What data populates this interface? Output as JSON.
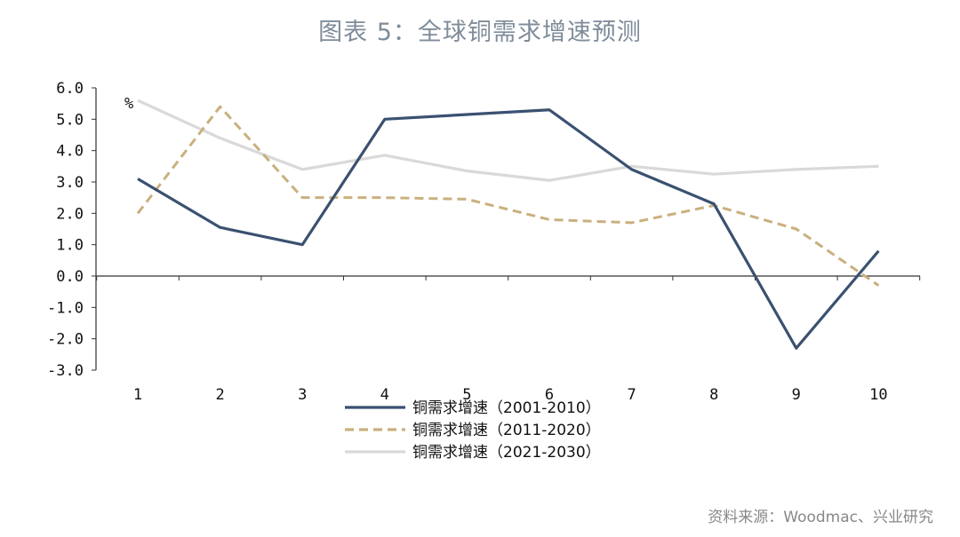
{
  "title": "图表 5：全球铜需求增速预测",
  "source": "资料来源：Woodmac、兴业研究",
  "chart_data": {
    "type": "line",
    "unit_label": "%",
    "categories": [
      "1",
      "2",
      "3",
      "4",
      "5",
      "6",
      "7",
      "8",
      "9",
      "10"
    ],
    "y_ticks": [
      "6.0",
      "5.0",
      "4.0",
      "3.0",
      "2.0",
      "1.0",
      "0.0",
      "-1.0",
      "-2.0",
      "-3.0"
    ],
    "ylim": [
      -3.0,
      6.0
    ],
    "legend_position": "bottom-center",
    "series": [
      {
        "name": "铜需求增速（2001-2010）",
        "color": "#3a5170",
        "dash": "solid",
        "values": [
          3.1,
          1.55,
          1.0,
          5.0,
          5.15,
          5.3,
          3.4,
          2.3,
          -2.3,
          0.8
        ]
      },
      {
        "name": "铜需求增速（2011-2020）",
        "color": "#c9b07e",
        "dash": "dashed",
        "values": [
          2.0,
          5.4,
          2.5,
          2.5,
          2.45,
          1.8,
          1.7,
          2.25,
          1.5,
          -0.3
        ]
      },
      {
        "name": "铜需求增速（2021-2030）",
        "color": "#d9d9d9",
        "dash": "solid",
        "values": [
          5.6,
          4.4,
          3.4,
          3.85,
          3.35,
          3.05,
          3.5,
          3.25,
          3.4,
          3.5
        ]
      }
    ]
  }
}
